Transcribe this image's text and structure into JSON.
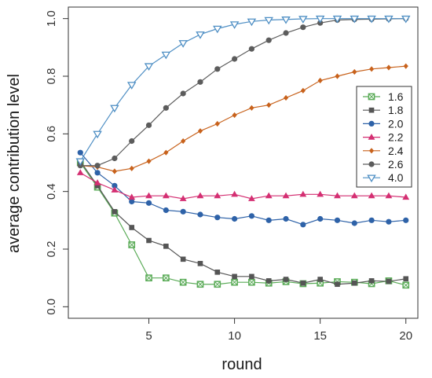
{
  "chart_data": {
    "type": "line",
    "xlabel": "round",
    "ylabel": "average contribution level",
    "xlim": [
      0.3,
      20.7
    ],
    "ylim": [
      -0.04,
      1.04
    ],
    "x_ticks": [
      5,
      10,
      15,
      20
    ],
    "y_ticks": [
      0.0,
      0.2,
      0.4,
      0.6,
      0.8,
      1.0
    ],
    "y_tick_labels": [
      "0.0",
      "0.2",
      "0.4",
      "0.6",
      "0.8",
      "1.0"
    ],
    "grid": false,
    "legend_position": "right",
    "x": [
      1,
      2,
      3,
      4,
      5,
      6,
      7,
      8,
      9,
      10,
      11,
      12,
      13,
      14,
      15,
      16,
      17,
      18,
      19,
      20
    ],
    "series": [
      {
        "name": "1.6",
        "color": "#5aab57",
        "marker": "open-square",
        "values": [
          0.5,
          0.415,
          0.325,
          0.215,
          0.1,
          0.1,
          0.085,
          0.078,
          0.078,
          0.085,
          0.085,
          0.082,
          0.087,
          0.08,
          0.082,
          0.087,
          0.085,
          0.08,
          0.09,
          0.075
        ]
      },
      {
        "name": "1.8",
        "color": "#555555",
        "marker": "filled-square",
        "values": [
          0.505,
          0.42,
          0.33,
          0.275,
          0.23,
          0.21,
          0.165,
          0.15,
          0.12,
          0.105,
          0.105,
          0.09,
          0.095,
          0.082,
          0.095,
          0.078,
          0.082,
          0.09,
          0.088,
          0.097
        ]
      },
      {
        "name": "2.0",
        "color": "#2e62a8",
        "marker": "filled-circle",
        "values": [
          0.535,
          0.465,
          0.42,
          0.365,
          0.36,
          0.335,
          0.33,
          0.32,
          0.31,
          0.305,
          0.315,
          0.3,
          0.305,
          0.285,
          0.305,
          0.3,
          0.29,
          0.3,
          0.295,
          0.3
        ]
      },
      {
        "name": "2.2",
        "color": "#d42f72",
        "marker": "filled-triangle",
        "values": [
          0.465,
          0.43,
          0.405,
          0.38,
          0.385,
          0.385,
          0.375,
          0.385,
          0.385,
          0.39,
          0.375,
          0.385,
          0.385,
          0.39,
          0.39,
          0.385,
          0.385,
          0.385,
          0.385,
          0.38
        ]
      },
      {
        "name": "2.4",
        "color": "#c8621c",
        "marker": "filled-diamond",
        "values": [
          0.49,
          0.485,
          0.47,
          0.48,
          0.505,
          0.535,
          0.575,
          0.61,
          0.635,
          0.665,
          0.69,
          0.7,
          0.725,
          0.75,
          0.785,
          0.8,
          0.815,
          0.825,
          0.83,
          0.835
        ]
      },
      {
        "name": "2.6",
        "color": "#5c5c5c",
        "marker": "filled-circle",
        "values": [
          0.49,
          0.49,
          0.515,
          0.575,
          0.63,
          0.69,
          0.74,
          0.78,
          0.825,
          0.86,
          0.895,
          0.925,
          0.95,
          0.97,
          0.985,
          0.995,
          0.997,
          0.998,
          0.999,
          1.0
        ]
      },
      {
        "name": "4.0",
        "color": "#4f8fc4",
        "marker": "open-triangle-down",
        "values": [
          0.505,
          0.6,
          0.69,
          0.77,
          0.835,
          0.875,
          0.915,
          0.945,
          0.965,
          0.98,
          0.99,
          0.995,
          0.997,
          0.999,
          1.0,
          1.0,
          1.0,
          1.0,
          1.0,
          1.0
        ]
      }
    ]
  }
}
